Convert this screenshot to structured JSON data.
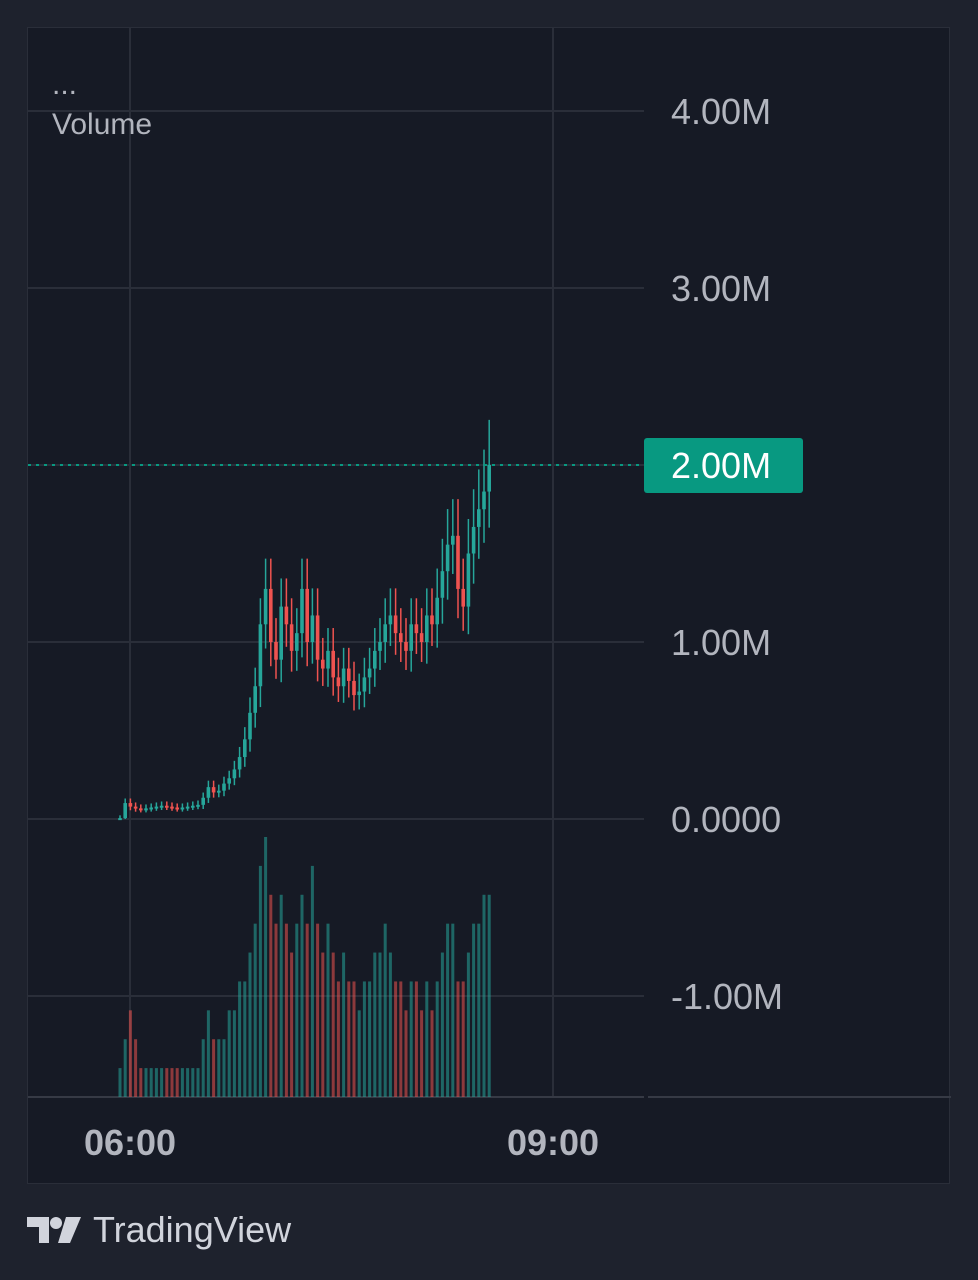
{
  "legend": {
    "menu_glyph": "...",
    "indicator_name": "Volume"
  },
  "brand": {
    "name": "TradingView",
    "logo_icon": "tradingview-logo-icon"
  },
  "colors": {
    "up": "#26a69a",
    "down": "#ef5350",
    "grid": "#2a2e39",
    "price_line": "#089981",
    "text": "#b2b5be"
  },
  "chart_data": {
    "type": "candlestick",
    "x_ticks": [
      "06:00",
      "09:00"
    ],
    "y_ticks": [
      "4.00M",
      "3.00M",
      "2.00M",
      "1.00M",
      "0.0000",
      "-1.00M"
    ],
    "y_tick_values": [
      4000000,
      3000000,
      2000000,
      1000000,
      0,
      -1000000
    ],
    "current_value_label": "2.00M",
    "current_value": 2000000,
    "legend": "Volume",
    "close_series": [
      5000,
      90000,
      70000,
      60000,
      55000,
      60000,
      65000,
      70000,
      75000,
      70000,
      65000,
      60000,
      65000,
      70000,
      75000,
      80000,
      120000,
      180000,
      150000,
      160000,
      200000,
      230000,
      280000,
      350000,
      450000,
      600000,
      750000,
      1100000,
      1300000,
      1000000,
      900000,
      1200000,
      1100000,
      950000,
      1050000,
      1300000,
      1000000,
      1150000,
      900000,
      850000,
      950000,
      800000,
      750000,
      850000,
      780000,
      700000,
      720000,
      800000,
      850000,
      950000,
      1000000,
      1100000,
      1150000,
      1050000,
      1000000,
      950000,
      1100000,
      1050000,
      1000000,
      1150000,
      1100000,
      1250000,
      1400000,
      1550000,
      1600000,
      1300000,
      1200000,
      1500000,
      1650000,
      1750000,
      1850000,
      2000000
    ],
    "volume_series": [
      1,
      2,
      3,
      2,
      1,
      1,
      1,
      1,
      1,
      1,
      1,
      1,
      1,
      1,
      1,
      1,
      2,
      3,
      2,
      2,
      2,
      3,
      3,
      4,
      4,
      5,
      6,
      8,
      9,
      7,
      6,
      7,
      6,
      5,
      6,
      7,
      6,
      8,
      6,
      5,
      6,
      5,
      4,
      5,
      4,
      4,
      3,
      4,
      4,
      5,
      5,
      6,
      5,
      4,
      4,
      3,
      4,
      4,
      3,
      4,
      3,
      4,
      5,
      6,
      6,
      4,
      4,
      5,
      6,
      6,
      7,
      7
    ]
  }
}
